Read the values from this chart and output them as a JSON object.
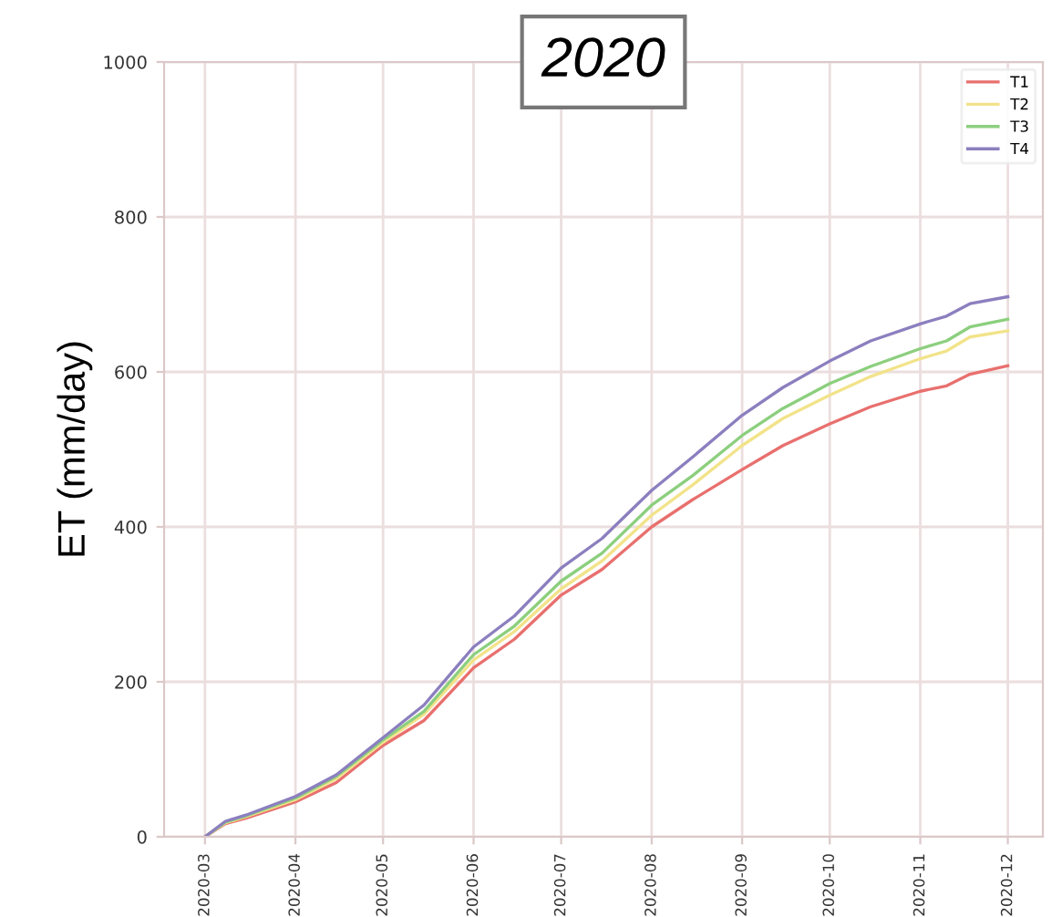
{
  "chart_data": {
    "type": "line",
    "title": "2020",
    "ylabel": "ET (mm/day)",
    "x": [
      "2020-03-01",
      "2020-03-08",
      "2020-03-15",
      "2020-04-01",
      "2020-04-15",
      "2020-05-01",
      "2020-05-15",
      "2020-06-01",
      "2020-06-15",
      "2020-07-01",
      "2020-07-15",
      "2020-08-01",
      "2020-08-15",
      "2020-09-01",
      "2020-09-15",
      "2020-10-01",
      "2020-10-15",
      "2020-11-01",
      "2020-11-10",
      "2020-11-18",
      "2020-12-01"
    ],
    "series": [
      {
        "name": "T1",
        "color": "#e8706e",
        "values": [
          0,
          17,
          24,
          45,
          70,
          118,
          150,
          218,
          255,
          312,
          345,
          400,
          435,
          474,
          505,
          533,
          555,
          575,
          582,
          597,
          608
        ]
      },
      {
        "name": "T2",
        "color": "#f2e38a",
        "values": [
          0,
          18,
          26,
          48,
          75,
          122,
          158,
          228,
          265,
          320,
          356,
          415,
          454,
          505,
          540,
          570,
          594,
          617,
          627,
          645,
          653
        ]
      },
      {
        "name": "T3",
        "color": "#8ccf7e",
        "values": [
          0,
          19,
          27,
          50,
          78,
          125,
          162,
          235,
          272,
          330,
          366,
          428,
          466,
          518,
          553,
          585,
          607,
          630,
          640,
          658,
          668
        ]
      },
      {
        "name": "T4",
        "color": "#8c7fbf",
        "values": [
          0,
          20,
          28,
          52,
          80,
          128,
          170,
          245,
          285,
          347,
          385,
          447,
          490,
          544,
          580,
          614,
          640,
          662,
          672,
          688,
          697
        ]
      }
    ],
    "xlim": [
      "2020-02-16",
      "2020-12-13"
    ],
    "xticks": [
      "2020-03",
      "2020-04",
      "2020-05",
      "2020-06",
      "2020-07",
      "2020-08",
      "2020-09",
      "2020-10",
      "2020-11",
      "2020-12"
    ],
    "ylim": [
      0,
      1000
    ],
    "yticks": [
      0,
      200,
      400,
      600,
      800,
      1000
    ],
    "grid": true,
    "legend": "top right",
    "marker": "none",
    "line_style": "solid"
  }
}
